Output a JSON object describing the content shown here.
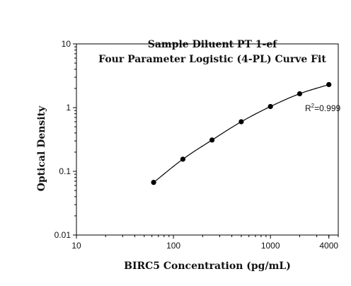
{
  "chart_data": {
    "type": "line",
    "title": "Sample Diluent PT 1-ef",
    "subtitle": "Four Parameter Logistic (4-PL) Curve Fit",
    "xlabel": "BIRC5 Concentration (pg/mL)",
    "ylabel": "Optical Density",
    "x_scale": "log",
    "y_scale": "log",
    "xlim": [
      10,
      5000
    ],
    "ylim": [
      0.01,
      10
    ],
    "x_ticks": [
      10,
      100,
      1000,
      4000
    ],
    "x_tick_labels": [
      "10",
      "100",
      "1000",
      "4000"
    ],
    "y_ticks": [
      0.01,
      0.1,
      1,
      10
    ],
    "y_tick_labels": [
      "0.01",
      "0.1",
      "1",
      "10"
    ],
    "grid": false,
    "legend": "none",
    "series": [
      {
        "x": [
          62.5,
          125,
          250,
          500,
          1000,
          2000,
          4000
        ],
        "y": [
          0.067,
          0.155,
          0.31,
          0.6,
          1.04,
          1.65,
          2.3
        ]
      }
    ],
    "annotation": {
      "text_prefix": "R",
      "text_superscript": "2",
      "text_suffix": "=0.999"
    },
    "colors": {
      "line": "#000000",
      "marker": "#000000"
    }
  }
}
